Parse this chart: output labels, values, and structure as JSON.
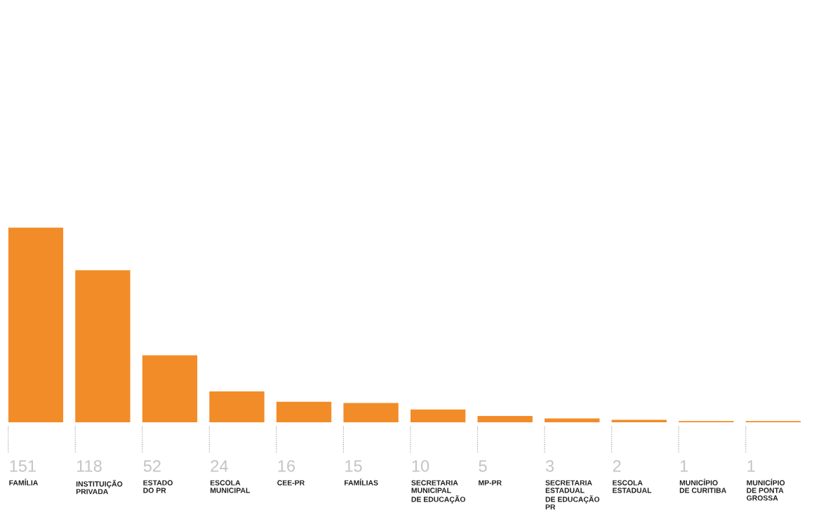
{
  "chart_data": {
    "type": "bar",
    "categories": [
      "FAMÍLIA",
      "INSTITUIÇÃO\nPRIVADA",
      "ESTADO\nDO PR",
      "ESCOLA\nMUNICIPAL",
      "CEE-PR",
      "FAMÍLIAS",
      "SECRETARIA\nMUNICIPAL\nDE EDUCAÇÃO",
      "MP-PR",
      "SECRETARIA\nESTADUAL\nDE EDUCAÇÃO\nPR",
      "ESCOLA\nESTADUAL",
      "MUNICÍPIO\nDE CURITIBA",
      "MUNICÍPIO\nDE PONTA\nGROSSA"
    ],
    "values": [
      151,
      118,
      52,
      24,
      16,
      15,
      10,
      5,
      3,
      2,
      1,
      1
    ],
    "color": "#f28c28",
    "data_labels": true
  }
}
